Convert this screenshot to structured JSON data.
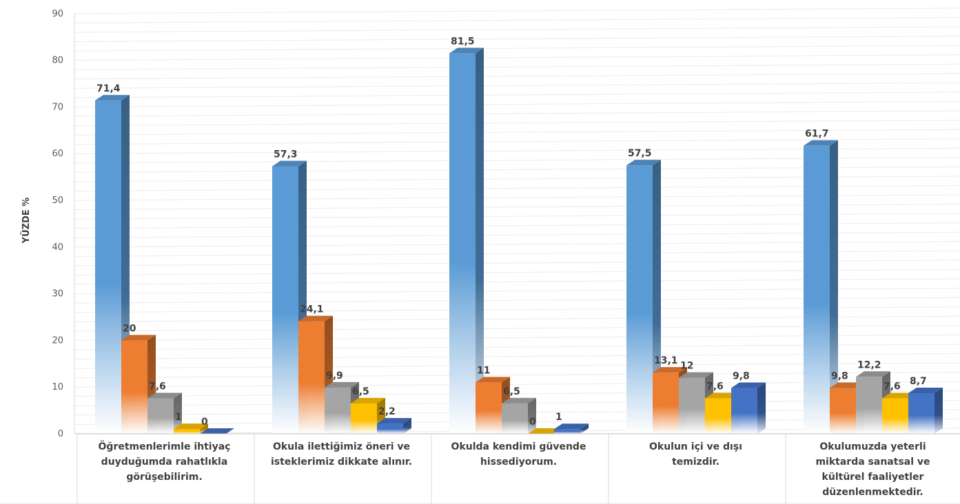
{
  "chart_data": {
    "type": "bar",
    "ylabel": "YÜZDE %",
    "ylim": [
      0,
      90
    ],
    "yticks": [
      0,
      10,
      20,
      30,
      40,
      50,
      60,
      70,
      80,
      90
    ],
    "grid": true,
    "categories": [
      [
        "Öğretmenlerimle ihtiyaç",
        "duyduğumda rahatlıkla",
        "görüşebilirim."
      ],
      [
        "Okula ilettiğimiz öneri ve",
        "isteklerimiz dikkate alınır."
      ],
      [
        "Okulda kendimi güvende",
        "hissediyorum."
      ],
      [
        "Okulun içi ve dışı",
        "temizdir."
      ],
      [
        "Okulumuzda yeterli",
        "miktarda sanatsal ve",
        "kültürel faaliyetler",
        "düzenlenmektedir."
      ]
    ],
    "series": [
      {
        "values": [
          71.4,
          57.3,
          81.5,
          57.5,
          61.7
        ],
        "labels": [
          "71,4",
          "57,3",
          "81,5",
          "57,5",
          "61,7"
        ],
        "color": "#5B9BD5"
      },
      {
        "values": [
          20,
          24.1,
          11,
          13.1,
          9.8
        ],
        "labels": [
          "20",
          "24,1",
          "11",
          "13,1",
          "9,8"
        ],
        "color": "#ED7D31"
      },
      {
        "values": [
          7.6,
          9.9,
          6.5,
          12,
          12.2
        ],
        "labels": [
          "7,6",
          "9,9",
          "6,5",
          "12",
          "12,2"
        ],
        "color": "#A5A5A5"
      },
      {
        "values": [
          1,
          6.5,
          0,
          7.6,
          7.6
        ],
        "labels": [
          "1",
          "6,5",
          "0",
          "7,6",
          "7,6"
        ],
        "color": "#FFC000"
      },
      {
        "values": [
          0,
          2.2,
          1,
          9.8,
          8.7
        ],
        "labels": [
          "0",
          "2,2",
          "1",
          "9,8",
          "8,7"
        ],
        "color": "#4472C4"
      }
    ]
  }
}
